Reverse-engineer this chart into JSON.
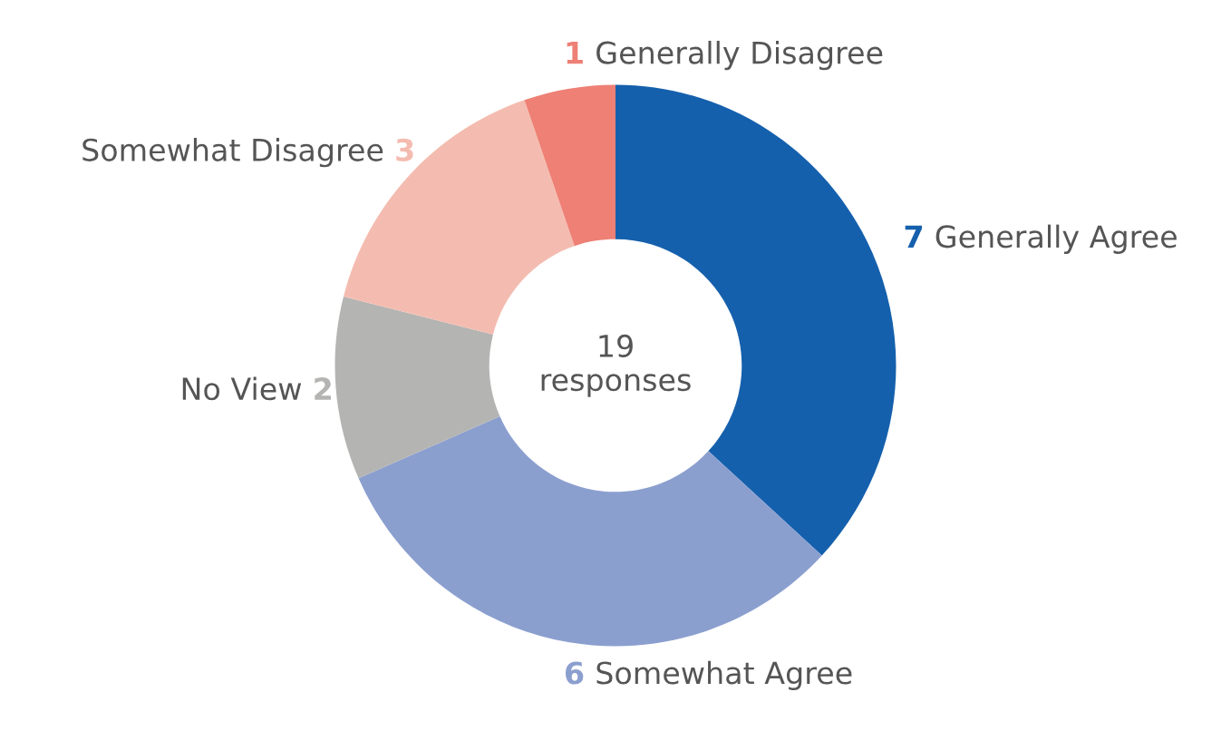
{
  "chart_data": {
    "type": "donut",
    "categories": [
      "Generally Agree",
      "Somewhat Agree",
      "No View",
      "Somewhat Disagree",
      "Generally Disagree"
    ],
    "values": [
      7,
      6,
      2,
      3,
      1
    ],
    "colors": [
      "#1560ad",
      "#8b9fcf",
      "#b4b4b2",
      "#f4bcb0",
      "#ee8075"
    ],
    "data_labels": true,
    "legend": false,
    "annotations": [
      "19\nresponses"
    ]
  }
}
